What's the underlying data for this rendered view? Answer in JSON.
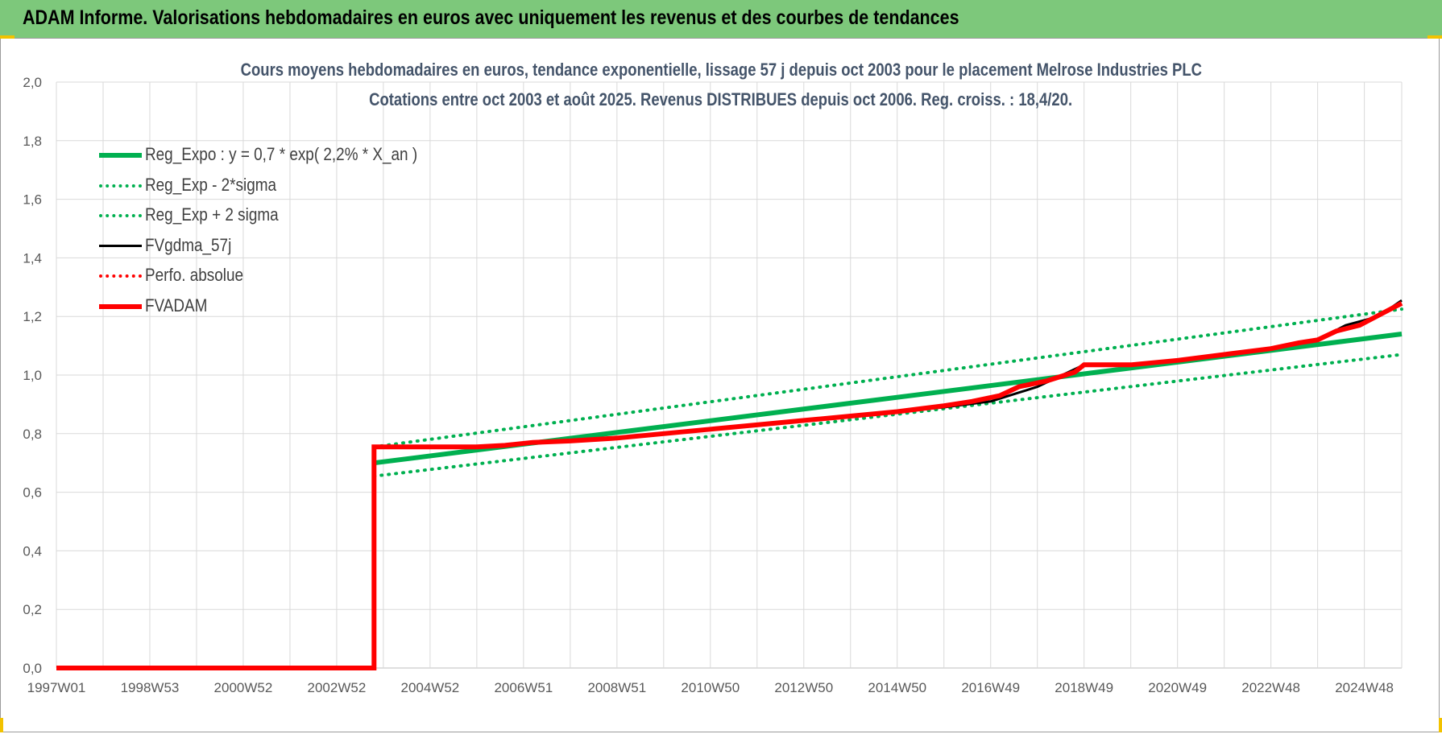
{
  "banner": {
    "title": "ADAM Informe. Valorisations hebdomadaires en euros avec uniquement les revenus et des courbes de tendances",
    "color": "#7dc87b"
  },
  "chart_data": {
    "type": "line",
    "title": "Cours moyens hebdomadaires en euros, tendance exponentielle, lissage 57 j depuis oct 2003 pour le placement Melrose Industries PLC",
    "subtitle": "Cotations entre oct 2003 et août 2025. Revenus DISTRIBUES depuis oct 2006. Reg. croiss. : 18,4/20.",
    "xlabel": "",
    "ylabel": "",
    "ylim": [
      0,
      2.0
    ],
    "y_ticks": [
      "0,0",
      "0,2",
      "0,4",
      "0,6",
      "0,8",
      "1,0",
      "1,2",
      "1,4",
      "1,6",
      "1,8",
      "2,0"
    ],
    "x_tick_labels": [
      "1997W01",
      "1998W53",
      "2000W52",
      "2002W52",
      "2004W52",
      "2006W51",
      "2008W51",
      "2010W50",
      "2012W50",
      "2014W50",
      "2016W49",
      "2018W49",
      "2020W49",
      "2022W48",
      "2024W48"
    ],
    "x_range_years": [
      1997.0,
      2025.8
    ],
    "grid": true,
    "legend_position": "top-left",
    "series": [
      {
        "name": "Reg_Expo : y = 0,7 * exp( 2,2% *  X_an )",
        "color": "#00b050",
        "style": "solid-thick",
        "x": [
          2003.8,
          2025.8
        ],
        "y": [
          0.7,
          1.14
        ]
      },
      {
        "name": "Reg_Exp - 2*sigma",
        "color": "#00b050",
        "style": "dotted",
        "x": [
          2003.8,
          2025.8
        ],
        "y": [
          0.655,
          1.07
        ]
      },
      {
        "name": "Reg_Exp + 2 sigma",
        "color": "#00b050",
        "style": "dotted",
        "x": [
          2003.8,
          2025.8
        ],
        "y": [
          0.755,
          1.225
        ]
      },
      {
        "name": "FVgdma_57j",
        "color": "#000000",
        "style": "solid",
        "x": [
          1997.0,
          2003.8,
          2003.8,
          2006.0,
          2008.0,
          2010.0,
          2012.0,
          2014.0,
          2016.0,
          2017.0,
          2018.0,
          2019.0,
          2020.0,
          2021.0,
          2022.0,
          2023.0,
          2024.0,
          2024.6,
          2025.3,
          2025.8
        ],
        "y": [
          0.0,
          0.0,
          0.755,
          0.755,
          0.775,
          0.8,
          0.83,
          0.86,
          0.89,
          0.91,
          0.96,
          1.035,
          1.035,
          1.05,
          1.07,
          1.09,
          1.12,
          1.17,
          1.2,
          1.255
        ]
      },
      {
        "name": "Perfo. absolue",
        "color": "#ff0000",
        "style": "dotted",
        "x": [],
        "y": []
      },
      {
        "name": "FVADAM",
        "color": "#ff0000",
        "style": "solid-thick",
        "x": [
          1997.0,
          2003.8,
          2003.8,
          2006.0,
          2006.6,
          2007.2,
          2008.0,
          2009.0,
          2010.0,
          2011.0,
          2012.0,
          2013.0,
          2014.0,
          2015.0,
          2016.0,
          2016.6,
          2017.2,
          2017.6,
          2018.2,
          2018.8,
          2019.0,
          2020.0,
          2021.0,
          2022.0,
          2023.0,
          2023.6,
          2024.0,
          2024.4,
          2024.9,
          2025.5,
          2025.8
        ],
        "y": [
          0.0,
          0.0,
          0.755,
          0.755,
          0.76,
          0.77,
          0.775,
          0.785,
          0.8,
          0.815,
          0.83,
          0.845,
          0.86,
          0.875,
          0.895,
          0.91,
          0.93,
          0.96,
          0.98,
          1.01,
          1.035,
          1.035,
          1.05,
          1.07,
          1.09,
          1.11,
          1.12,
          1.15,
          1.17,
          1.22,
          1.245
        ]
      }
    ]
  }
}
